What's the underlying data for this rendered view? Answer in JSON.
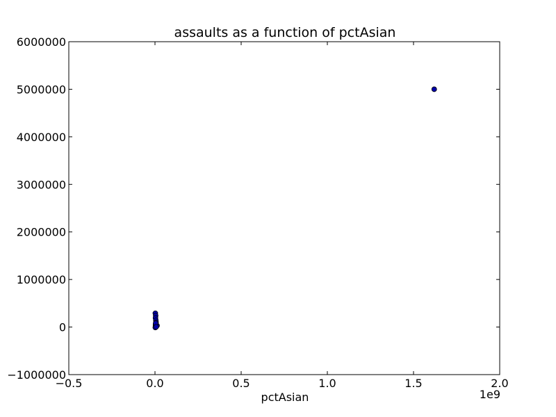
{
  "chart_data": {
    "type": "scatter",
    "title": "assaults as a function of pctAsian",
    "xlabel": "pctAsian",
    "ylabel": "",
    "x_offset_label": "1e9",
    "xlim": [
      -0.5,
      2.0
    ],
    "ylim": [
      -1000000,
      6000000
    ],
    "x_ticks": [
      -0.5,
      0.0,
      0.5,
      1.0,
      1.5,
      2.0
    ],
    "x_tick_labels": [
      "−0.5",
      "0.0",
      "0.5",
      "1.0",
      "1.5",
      "2.0"
    ],
    "y_ticks": [
      -1000000,
      0,
      1000000,
      2000000,
      3000000,
      4000000,
      5000000,
      6000000
    ],
    "y_tick_labels": [
      "−1000000",
      "0",
      "1000000",
      "2000000",
      "3000000",
      "4000000",
      "5000000",
      "6000000"
    ],
    "grid": false,
    "marker_color": "#0000aa",
    "series": [
      {
        "x": [
          0.002,
          0.004,
          0.003,
          0.005,
          0.006,
          0.004,
          0.003,
          0.008,
          0.012,
          0.006,
          0.003,
          0.002,
          0.005,
          0.004,
          0.007,
          1.62
        ],
        "y": [
          290000,
          240000,
          190000,
          140000,
          100000,
          70000,
          40000,
          20000,
          30000,
          10000,
          0,
          -10000,
          50000,
          80000,
          5000,
          5000000
        ]
      }
    ]
  }
}
